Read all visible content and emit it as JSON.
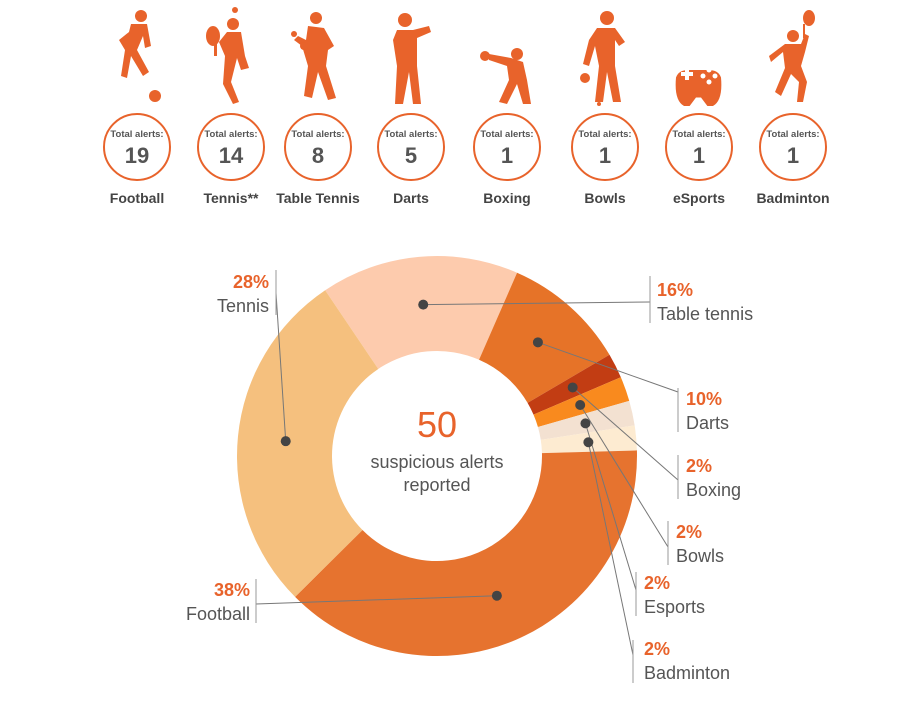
{
  "sports": [
    {
      "name": "Football",
      "alerts_label": "Total alerts:",
      "count": "19",
      "icon": "football-player-icon"
    },
    {
      "name": "Tennis**",
      "alerts_label": "Total alerts:",
      "count": "14",
      "icon": "tennis-player-icon"
    },
    {
      "name": "Table Tennis",
      "alerts_label": "Total alerts:",
      "count": "8",
      "icon": "table-tennis-player-icon"
    },
    {
      "name": "Darts",
      "alerts_label": "Total alerts:",
      "count": "5",
      "icon": "darts-player-icon"
    },
    {
      "name": "Boxing",
      "alerts_label": "Total alerts:",
      "count": "1",
      "icon": "boxer-icon"
    },
    {
      "name": "Bowls",
      "alerts_label": "Total alerts:",
      "count": "1",
      "icon": "bowls-player-icon"
    },
    {
      "name": "eSports",
      "alerts_label": "Total alerts:",
      "count": "1",
      "icon": "gamepad-icon"
    },
    {
      "name": "Badminton",
      "alerts_label": "Total alerts:",
      "count": "1",
      "icon": "badminton-player-icon"
    }
  ],
  "chart_data": {
    "type": "pie",
    "center_value": "50",
    "center_text_line1": "suspicious alerts",
    "center_text_line2": "reported",
    "slices": [
      {
        "label": "Table tennis",
        "value": 16,
        "pct": "16%",
        "color": "#fdcbad"
      },
      {
        "label": "Darts",
        "value": 10,
        "pct": "10%",
        "color": "#e67328"
      },
      {
        "label": "Boxing",
        "value": 2,
        "pct": "2%",
        "color": "#c23d13"
      },
      {
        "label": "Bowls",
        "value": 2,
        "pct": "2%",
        "color": "#f98a1e"
      },
      {
        "label": "Esports",
        "value": 2,
        "pct": "2%",
        "color": "#f3e1d1"
      },
      {
        "label": "Badminton",
        "value": 2,
        "pct": "2%",
        "color": "#fdebd1"
      },
      {
        "label": "Football",
        "value": 38,
        "pct": "38%",
        "color": "#e6732f"
      },
      {
        "label": "Tennis",
        "value": 28,
        "pct": "28%",
        "color": "#f5c07e"
      }
    ]
  },
  "colors": {
    "accent": "#e8632b",
    "center_value": "#e8632b",
    "text": "#555555"
  }
}
